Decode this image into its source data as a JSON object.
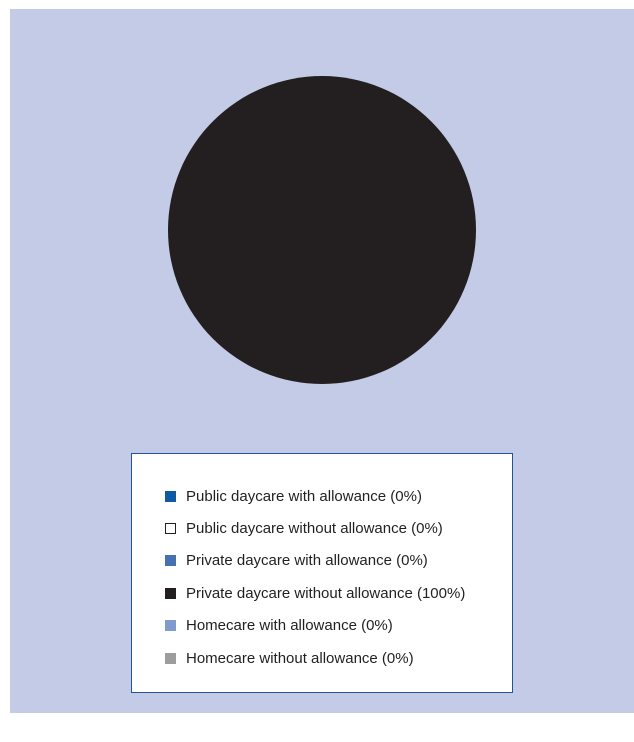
{
  "chart_data": {
    "type": "pie",
    "categories": [
      "Public daycare with allowance",
      "Public daycare without allowance",
      "Private daycare with allowance",
      "Private daycare without allowance",
      "Homecare with allowance",
      "Homecare without allowance"
    ],
    "values": [
      0,
      0,
      0,
      100,
      0,
      0
    ],
    "legend_labels": [
      "Public daycare with allowance (0%)",
      "Public daycare without allowance (0%)",
      "Private daycare with allowance (0%)",
      "Private daycare without allowance (100%)",
      "Homecare with allowance (0%)",
      "Homecare without allowance (0%)"
    ],
    "colors": [
      "#0f5aa0",
      "#ffffff",
      "#4571b0",
      "#231f20",
      "#7f9acd",
      "#9d9d9f"
    ],
    "legend_placement": "bottom"
  }
}
